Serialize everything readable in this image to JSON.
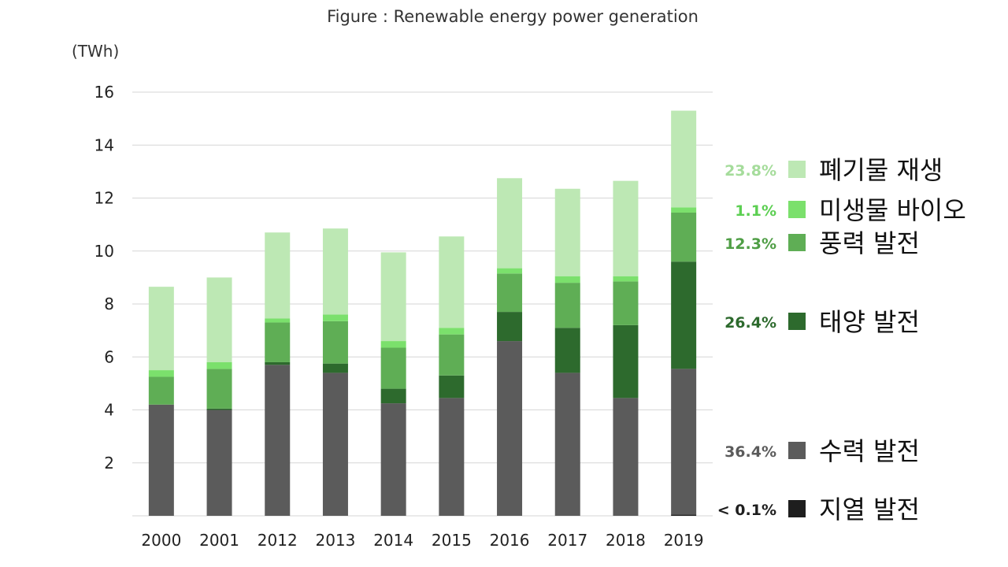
{
  "chart_data": {
    "type": "bar",
    "stacked": true,
    "title": "Figure  : Renewable energy power generation",
    "ylabel": "(TWh)",
    "ylim": [
      0,
      16
    ],
    "yticks": [
      2,
      4,
      6,
      8,
      10,
      12,
      14,
      16
    ],
    "grid": true,
    "legend_position": "right",
    "categories": [
      "2000",
      "2001",
      "2012",
      "2013",
      "2014",
      "2015",
      "2016",
      "2017",
      "2018",
      "2019"
    ],
    "series": [
      {
        "name": "지열 발전",
        "share": "< 0.1%",
        "color": "#1e1e1e",
        "values": [
          0,
          0,
          0,
          0,
          0,
          0,
          0,
          0,
          0,
          0.05
        ]
      },
      {
        "name": "수력 발전",
        "share": "36.4%",
        "color": "#5b5b5b",
        "share_color": "#5b5b5b",
        "values": [
          4.2,
          4.0,
          5.7,
          5.4,
          4.25,
          4.45,
          6.6,
          5.4,
          4.45,
          5.5
        ]
      },
      {
        "name": "태양 발전",
        "share": "26.4%",
        "color": "#2d6a2d",
        "share_color": "#2d6a2d",
        "values": [
          0.0,
          0.05,
          0.1,
          0.35,
          0.55,
          0.85,
          1.1,
          1.7,
          2.75,
          4.05
        ]
      },
      {
        "name": "풍력 발전",
        "share": "12.3%",
        "color": "#5fae55",
        "share_color": "#4f9e45",
        "values": [
          1.05,
          1.5,
          1.5,
          1.6,
          1.55,
          1.55,
          1.45,
          1.7,
          1.65,
          1.85
        ]
      },
      {
        "name": "미생물 바이오",
        "share": "1.1%",
        "color": "#7be06c",
        "share_color": "#5ccf52",
        "values": [
          0.25,
          0.25,
          0.15,
          0.25,
          0.25,
          0.25,
          0.2,
          0.25,
          0.2,
          0.2
        ]
      },
      {
        "name": "폐기물 재생",
        "share": "23.8%",
        "color": "#bde8b4",
        "share_color": "#a5dc9b",
        "values": [
          3.15,
          3.2,
          3.25,
          3.25,
          3.35,
          3.45,
          3.4,
          3.3,
          3.6,
          3.65
        ]
      }
    ]
  }
}
